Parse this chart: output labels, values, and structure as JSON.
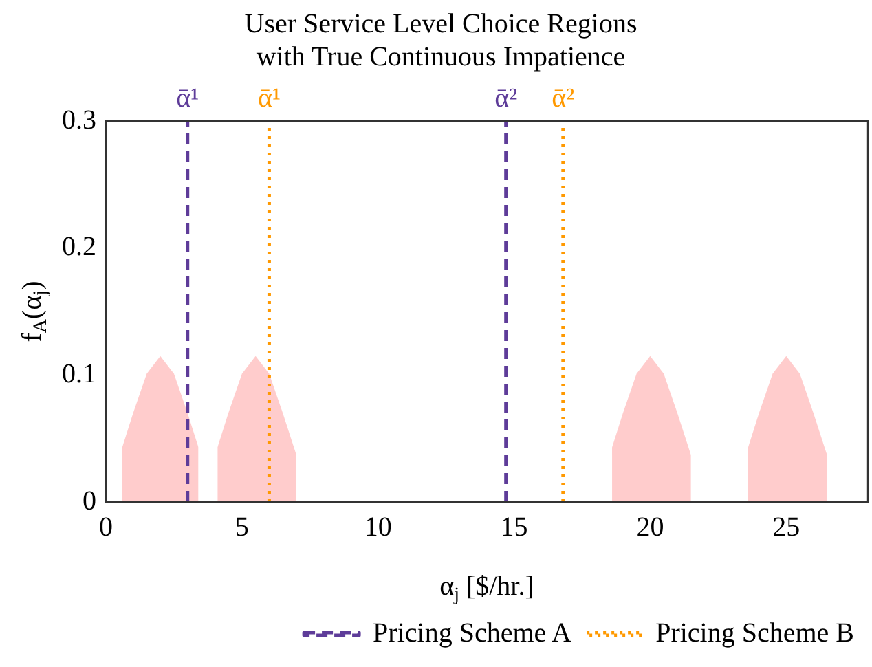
{
  "chart_data": {
    "type": "area",
    "title": "User Service Level Choice Regions\nwith True Continuous Impatience",
    "xlabel": "α$_{j}$ [$/hr.]",
    "ylabel": "f$_{A}$(α$_{j}$)",
    "xlim": [
      0,
      28
    ],
    "xticks": [
      0,
      5,
      10,
      15,
      20,
      25
    ],
    "ylim": [
      0,
      0.3
    ],
    "yticks": [
      0,
      0.1,
      0.2,
      0.3
    ],
    "grid": false,
    "legend": "bottom",
    "marker": "none",
    "series": [
      {
        "color": "#ffcccc",
        "x": [
          0.6,
          1.0,
          1.5,
          2.0,
          2.5,
          3.0,
          3.4
        ],
        "values": [
          0.043,
          0.07,
          0.101,
          0.115,
          0.101,
          0.07,
          0.043
        ]
      },
      {
        "color": "#ffcccc",
        "x": [
          4.1,
          4.5,
          5.0,
          5.5,
          6.0,
          6.5,
          7.0
        ],
        "values": [
          0.043,
          0.07,
          0.101,
          0.115,
          0.101,
          0.07,
          0.037
        ]
      },
      {
        "color": "#ffcccc",
        "x": [
          18.6,
          19.0,
          19.5,
          20.0,
          20.5,
          21.0,
          21.5
        ],
        "values": [
          0.043,
          0.07,
          0.101,
          0.115,
          0.101,
          0.07,
          0.037
        ]
      },
      {
        "color": "#ffcccc",
        "x": [
          23.6,
          24.0,
          24.5,
          25.0,
          25.5,
          26.0,
          26.5
        ],
        "values": [
          0.043,
          0.07,
          0.101,
          0.115,
          0.101,
          0.07,
          0.037
        ]
      },
      {
        "type": "line",
        "name": "Pricing Scheme A",
        "color": "#5e3c99",
        "line_style": "dashed",
        "x": [
          3.0,
          3.0
        ],
        "values": [
          0,
          0.3
        ]
      },
      {
        "type": "line",
        "color": "#5e3c99",
        "line_style": "dashed",
        "x": [
          14.7,
          14.7
        ],
        "values": [
          0,
          0.3
        ]
      },
      {
        "type": "line",
        "name": "Pricing Scheme B",
        "color": "#ff9900",
        "line_style": "dotted",
        "x": [
          6.0,
          6.0
        ],
        "values": [
          0,
          0.3
        ]
      },
      {
        "type": "line",
        "color": "#ff9900",
        "line_style": "dotted",
        "x": [
          16.8,
          16.8
        ],
        "values": [
          0,
          0.3
        ]
      }
    ],
    "annotations": [
      {
        "text": "ᾱ¹",
        "x": 3.0,
        "y": 0.3
      },
      {
        "text": "ᾱ¹",
        "x": 6.0,
        "y": 0.3
      },
      {
        "text": "ᾱ²",
        "x": 14.7,
        "y": 0.3
      },
      {
        "text": "ᾱ²",
        "x": 16.8,
        "y": 0.3
      }
    ]
  }
}
